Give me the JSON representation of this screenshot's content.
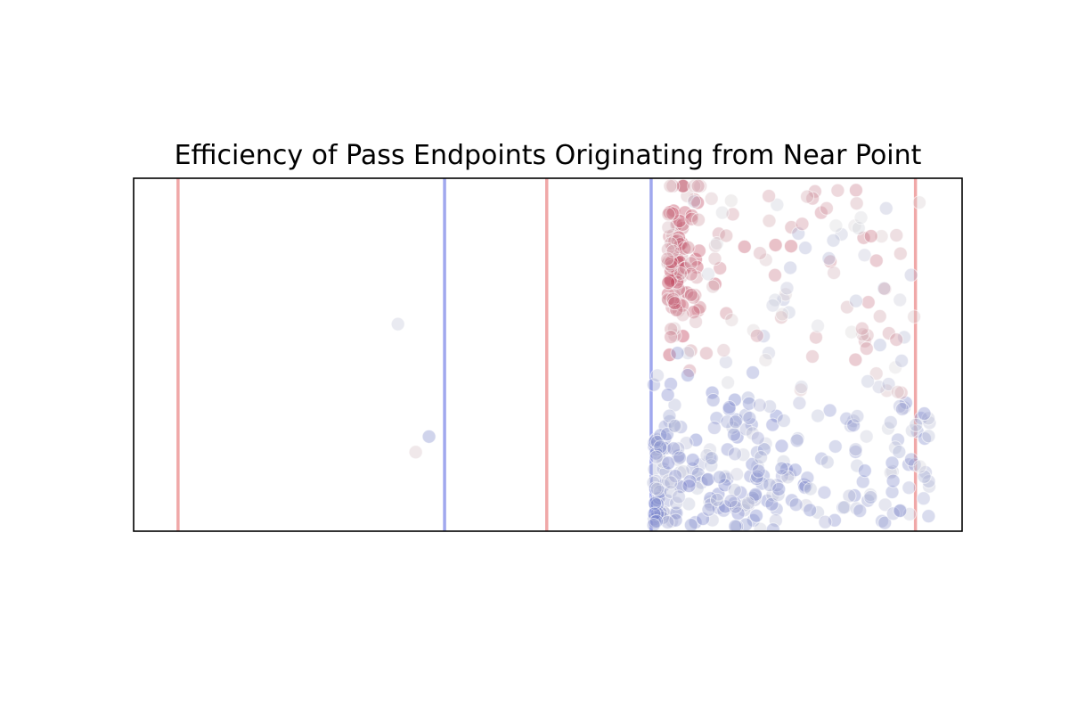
{
  "chart_data": {
    "type": "scatter",
    "title": "Efficiency of Pass Endpoints Originating from Near Point",
    "xlabel": "",
    "ylabel": "",
    "axes_ticks_visible": false,
    "grid": false,
    "legend": "none",
    "colormap": "coolwarm",
    "colors": {
      "low": "#3b4cc0",
      "mid": "#dddddd",
      "high": "#b40426",
      "red_line": "#f0a8a8",
      "blue_line": "#a0a8ee"
    },
    "vertical_lines": [
      {
        "x": 2,
        "color": "red"
      },
      {
        "x": 14,
        "color": "blue"
      },
      {
        "x": 18.6,
        "color": "red"
      },
      {
        "x": 23.3,
        "color": "blue"
      },
      {
        "x": 35.2,
        "color": "red"
      }
    ],
    "xlim": [
      0,
      37.3
    ],
    "ylim": [
      0,
      31.7
    ],
    "points_note": "Each point: x, y, v where v in [-1, 1] maps to the coolwarm colour scale (negative = blue, positive = red)."
  }
}
